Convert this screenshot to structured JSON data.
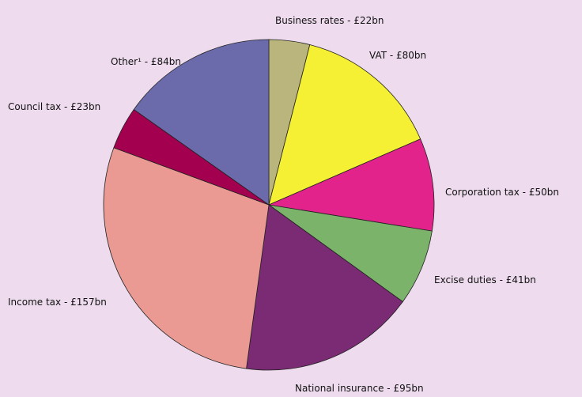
{
  "chart_data": {
    "type": "pie",
    "value_labels": [
      "Business rates - £22bn",
      "VAT - £80bn",
      "Corporation tax - £50bn",
      "Excise duties - £41bn",
      "National insurance - £95bn",
      "Income tax - £157bn",
      "Council tax - £23bn",
      "Other¹ - £84bn"
    ],
    "values": [
      22,
      80,
      50,
      41,
      95,
      157,
      23,
      84
    ],
    "colors": [
      "#bab57c",
      "#f5f034",
      "#e2238c",
      "#7bb36b",
      "#7b2b74",
      "#ea9a92",
      "#a3004f",
      "#6b6bac"
    ]
  }
}
